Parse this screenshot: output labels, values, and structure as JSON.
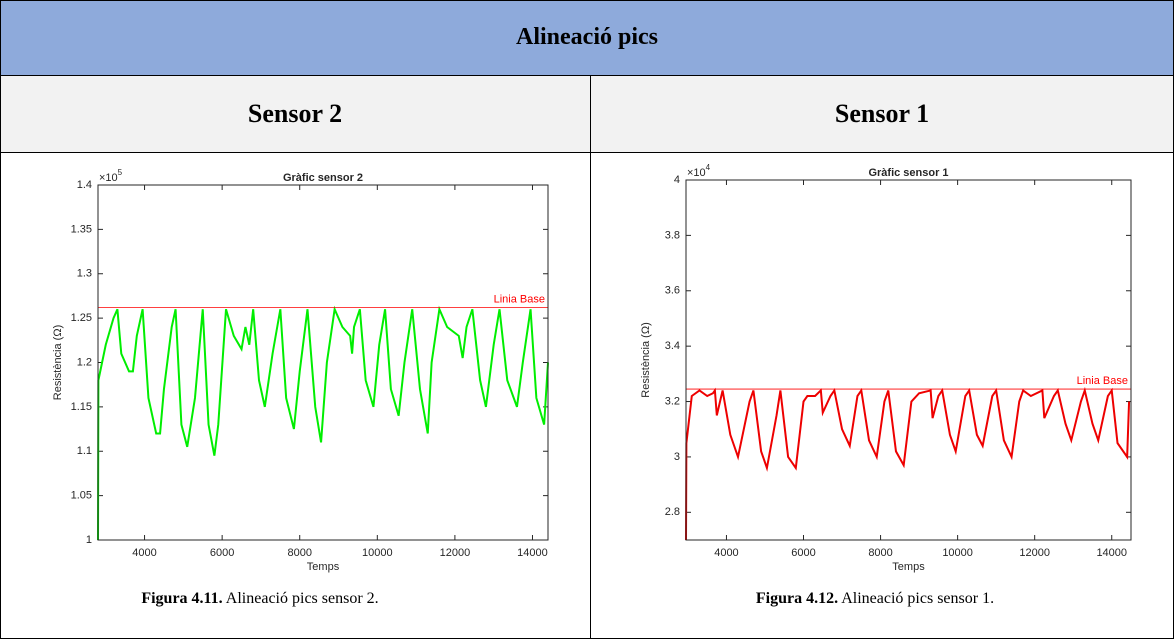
{
  "table": {
    "title": "Alineació pics",
    "columns": [
      "Sensor 2",
      "Sensor 1"
    ],
    "cells": [
      {
        "chart_data": {
          "type": "line",
          "title": "Gràfic sensor 2",
          "x_label": "Temps",
          "y_label": "Resistència (Ω)",
          "y_scale_base": "×10",
          "y_scale_exponent": "5",
          "xlim": [
            2800,
            14400
          ],
          "ylim": [
            1,
            1.4
          ],
          "xticks": [
            4000,
            6000,
            8000,
            10000,
            12000,
            14000
          ],
          "yticks": [
            1,
            1.05,
            1.1,
            1.15,
            1.2,
            1.25,
            1.3,
            1.35,
            1.4
          ],
          "grid": false,
          "color": "#00ee00",
          "x": [
            2800,
            2810,
            3000,
            3200,
            3300,
            3400,
            3600,
            3700,
            3800,
            3950,
            4100,
            4300,
            4400,
            4500,
            4700,
            4800,
            4950,
            5100,
            5300,
            5500,
            5650,
            5800,
            5900,
            6100,
            6300,
            6500,
            6600,
            6700,
            6800,
            6950,
            7100,
            7300,
            7500,
            7650,
            7850,
            8000,
            8200,
            8400,
            8550,
            8700,
            8900,
            9100,
            9300,
            9350,
            9400,
            9550,
            9700,
            9900,
            10050,
            10200,
            10350,
            10550,
            10700,
            10900,
            11100,
            11300,
            11400,
            11600,
            11800,
            12100,
            12200,
            12300,
            12450,
            12650,
            12800,
            13000,
            13150,
            13350,
            13600,
            13750,
            13950,
            14100,
            14300,
            14400
          ],
          "values": [
            1.0,
            1.18,
            1.22,
            1.25,
            1.26,
            1.21,
            1.19,
            1.19,
            1.23,
            1.26,
            1.16,
            1.12,
            1.12,
            1.17,
            1.24,
            1.26,
            1.13,
            1.105,
            1.16,
            1.26,
            1.13,
            1.095,
            1.13,
            1.26,
            1.23,
            1.215,
            1.24,
            1.22,
            1.26,
            1.18,
            1.15,
            1.21,
            1.26,
            1.16,
            1.125,
            1.19,
            1.26,
            1.15,
            1.11,
            1.2,
            1.26,
            1.24,
            1.23,
            1.21,
            1.24,
            1.26,
            1.18,
            1.15,
            1.22,
            1.26,
            1.17,
            1.14,
            1.2,
            1.26,
            1.17,
            1.12,
            1.2,
            1.26,
            1.24,
            1.23,
            1.205,
            1.24,
            1.26,
            1.18,
            1.15,
            1.22,
            1.26,
            1.18,
            1.15,
            1.2,
            1.26,
            1.16,
            1.13,
            1.2
          ],
          "reference_line": {
            "y": 1.262,
            "label": "Linia Base",
            "color": "#ff0000"
          }
        },
        "caption": {
          "label": "Figura 4.11.",
          "text": "Alineació pics sensor 2."
        }
      },
      {
        "chart_data": {
          "type": "line",
          "title": "Gràfic sensor 1",
          "x_label": "Temps",
          "y_label": "Resistència (Ω)",
          "y_scale_base": "×10",
          "y_scale_exponent": "4",
          "xlim": [
            2950,
            14500
          ],
          "ylim": [
            2.7,
            4
          ],
          "xticks": [
            4000,
            6000,
            8000,
            10000,
            12000,
            14000
          ],
          "yticks": [
            2.8,
            3,
            3.2,
            3.4,
            3.6,
            3.8,
            4
          ],
          "grid": false,
          "color": "#ee0000",
          "x": [
            2950,
            2960,
            3100,
            3300,
            3500,
            3650,
            3700,
            3750,
            3900,
            4100,
            4300,
            4600,
            4700,
            4900,
            5050,
            5300,
            5400,
            5600,
            5800,
            6000,
            6100,
            6300,
            6450,
            6500,
            6700,
            6800,
            7000,
            7200,
            7400,
            7500,
            7700,
            7900,
            8100,
            8200,
            8400,
            8600,
            8800,
            9000,
            9300,
            9350,
            9500,
            9600,
            9800,
            9950,
            10200,
            10300,
            10500,
            10650,
            10900,
            11000,
            11200,
            11400,
            11600,
            11700,
            11900,
            12200,
            12250,
            12500,
            12600,
            12800,
            12950,
            13200,
            13300,
            13500,
            13650,
            13900,
            14000,
            14150,
            14400,
            14450
          ],
          "values": [
            2.7,
            3.05,
            3.22,
            3.24,
            3.22,
            3.23,
            3.24,
            3.15,
            3.24,
            3.08,
            3.0,
            3.2,
            3.24,
            3.02,
            2.96,
            3.15,
            3.24,
            3.0,
            2.96,
            3.2,
            3.22,
            3.22,
            3.24,
            3.16,
            3.22,
            3.24,
            3.1,
            3.04,
            3.22,
            3.24,
            3.06,
            3.0,
            3.2,
            3.24,
            3.02,
            2.97,
            3.2,
            3.23,
            3.24,
            3.14,
            3.22,
            3.24,
            3.08,
            3.02,
            3.22,
            3.24,
            3.08,
            3.04,
            3.22,
            3.24,
            3.06,
            3.0,
            3.2,
            3.24,
            3.22,
            3.24,
            3.14,
            3.22,
            3.24,
            3.12,
            3.06,
            3.2,
            3.24,
            3.12,
            3.06,
            3.22,
            3.24,
            3.05,
            3.0,
            3.2
          ],
          "reference_line": {
            "y": 3.245,
            "label": "Linia Base",
            "color": "#ff0000"
          }
        },
        "caption": {
          "label": "Figura 4.12.",
          "text": "Alineació pics sensor 1."
        }
      }
    ]
  }
}
